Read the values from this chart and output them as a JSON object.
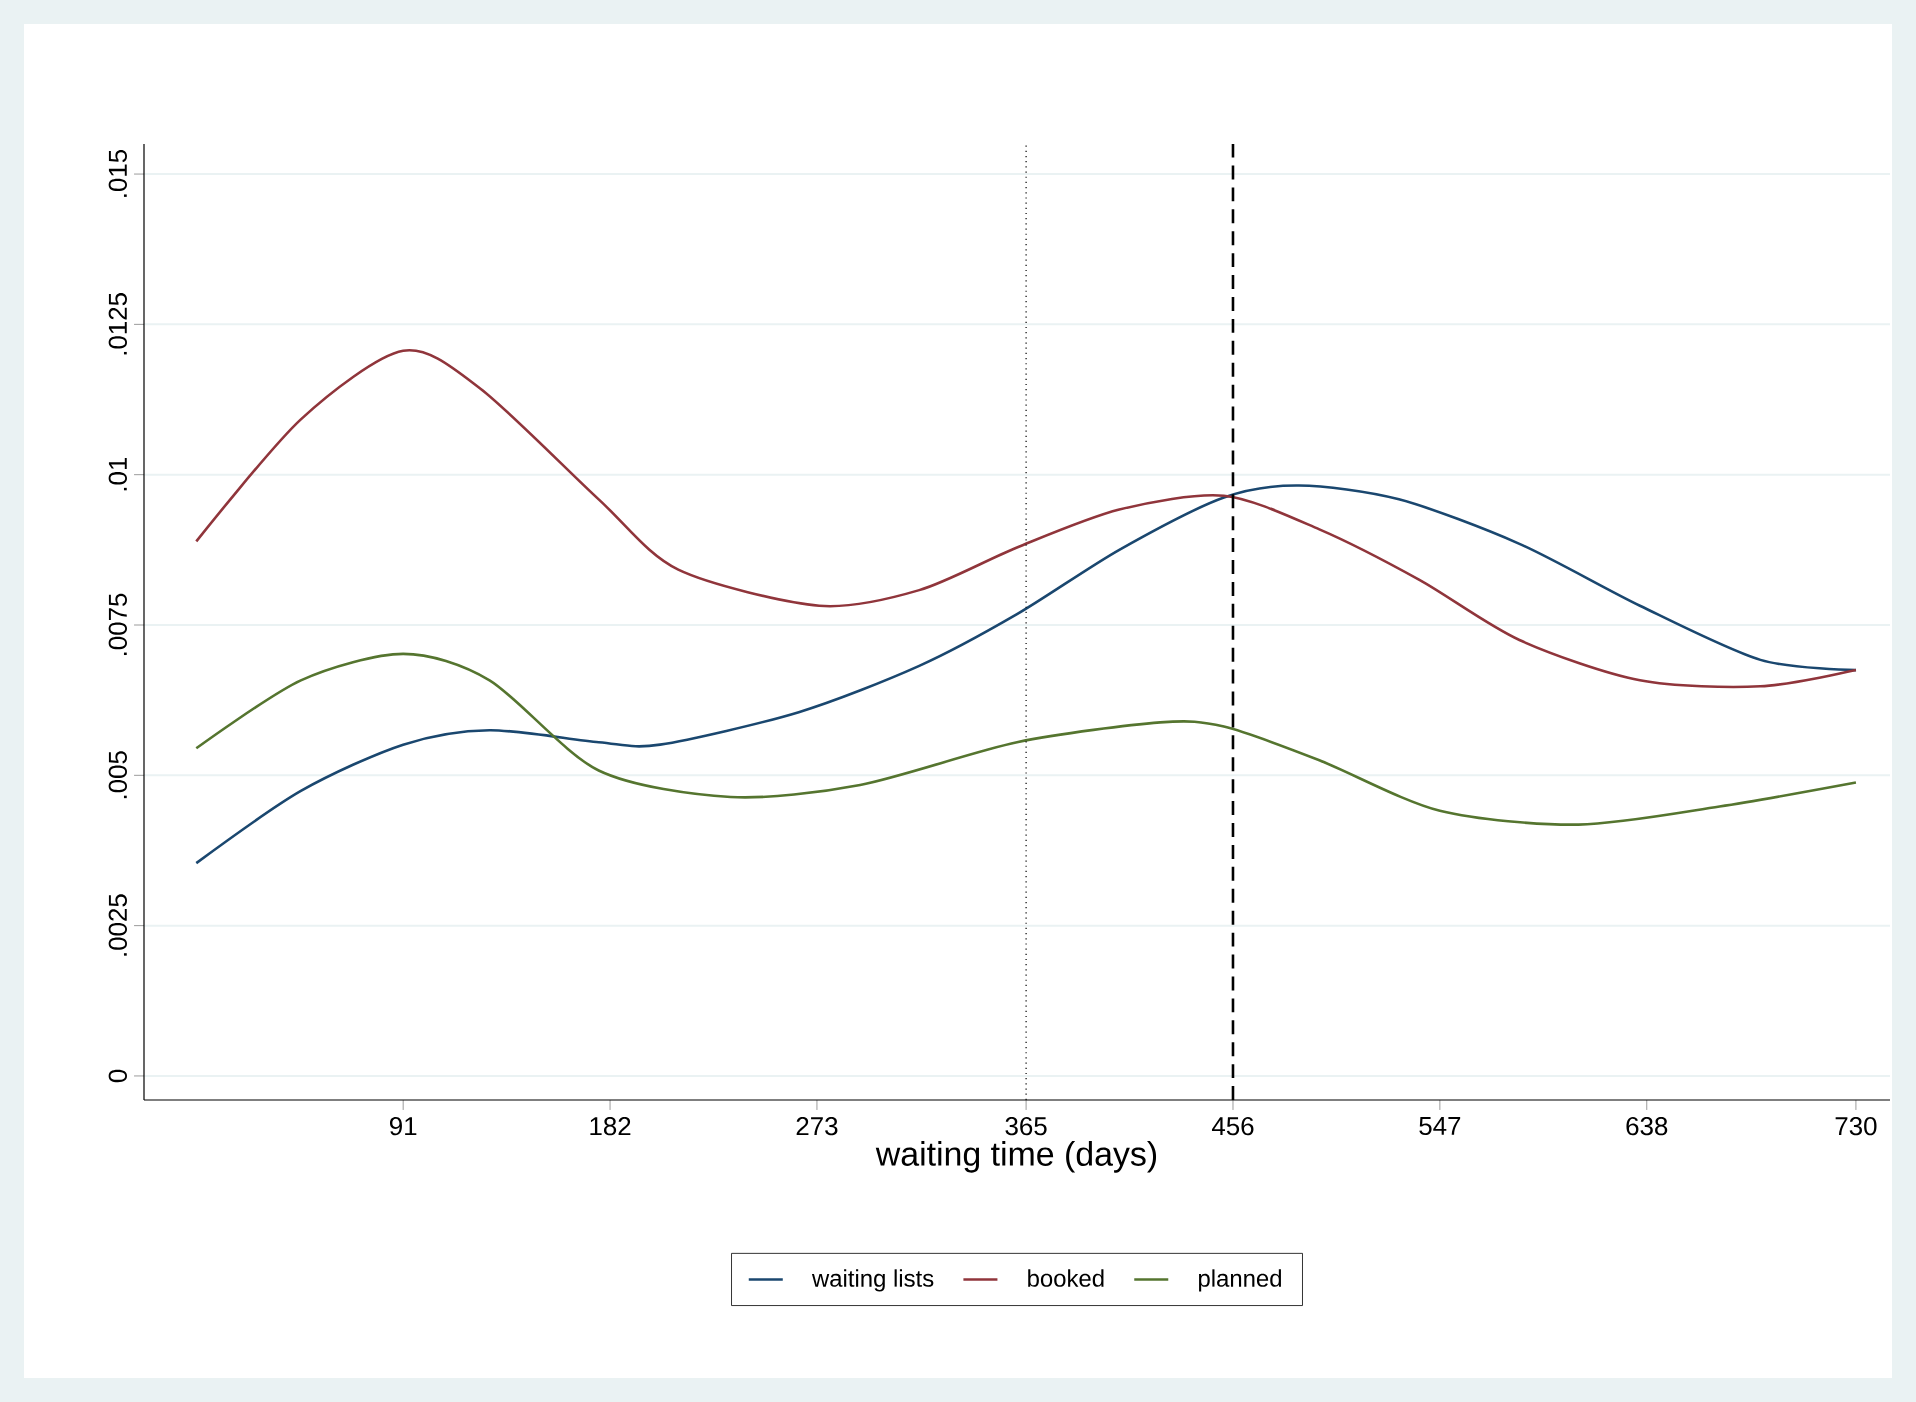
{
  "chart_data": {
    "type": "line",
    "xlabel": "waiting time (days)",
    "x": [
      0,
      46,
      91,
      129,
      177,
      204,
      265,
      318,
      361,
      406,
      452,
      485,
      529,
      582,
      635,
      688,
      730
    ],
    "series": [
      {
        "name": "waiting lists",
        "color": "#1a476f",
        "values": [
          0.00354,
          0.00474,
          0.00551,
          0.00575,
          0.00555,
          0.00551,
          0.00605,
          0.00682,
          0.00768,
          0.00875,
          0.00962,
          0.00982,
          0.00959,
          0.00885,
          0.00782,
          0.00692,
          0.00675
        ]
      },
      {
        "name": "booked",
        "color": "#90353b",
        "x": [
          0,
          46,
          91,
          125,
          177,
          212,
          274,
          318,
          361,
          406,
          452,
          494,
          538,
          582,
          635,
          688,
          730
        ],
        "values": [
          0.00889,
          0.01092,
          0.01206,
          0.01143,
          0.00959,
          0.00842,
          0.00782,
          0.00808,
          0.00879,
          0.00942,
          0.00965,
          0.00909,
          0.00825,
          0.00725,
          0.00658,
          0.00648,
          0.00675
        ]
      },
      {
        "name": "planned",
        "color": "#55752f",
        "x": [
          0,
          46,
          91,
          129,
          177,
          235,
          292,
          361,
          424,
          452,
          494,
          547,
          608,
          670,
          730
        ],
        "values": [
          0.00545,
          0.00658,
          0.00702,
          0.00658,
          0.00508,
          0.00464,
          0.00484,
          0.00555,
          0.00588,
          0.00581,
          0.00525,
          0.00441,
          0.00418,
          0.00448,
          0.00488
        ]
      }
    ],
    "xlim": [
      -23,
      745
    ],
    "ylim": [
      -0.0004,
      0.0155
    ],
    "xticks": [
      91,
      182,
      273,
      365,
      456,
      547,
      638,
      730
    ],
    "yticks": [
      0,
      {
        "value": 0.0025,
        "label": ".0025"
      },
      {
        "value": 0.005,
        "label": ".005"
      },
      {
        "value": 0.0075,
        "label": ".0075"
      },
      {
        "value": 0.01,
        "label": ".01"
      },
      {
        "value": 0.0125,
        "label": ".0125"
      },
      {
        "value": 0.015,
        "label": ".015"
      }
    ],
    "ref_lines": [
      {
        "axis": "x",
        "value": 365,
        "line_style": "dotted",
        "color": "#000000"
      },
      {
        "axis": "x",
        "value": 456,
        "line_style": "dashed",
        "color": "#000000"
      }
    ],
    "grid": "y",
    "legend": "bottom",
    "marker": "none",
    "line_style": "solid"
  }
}
